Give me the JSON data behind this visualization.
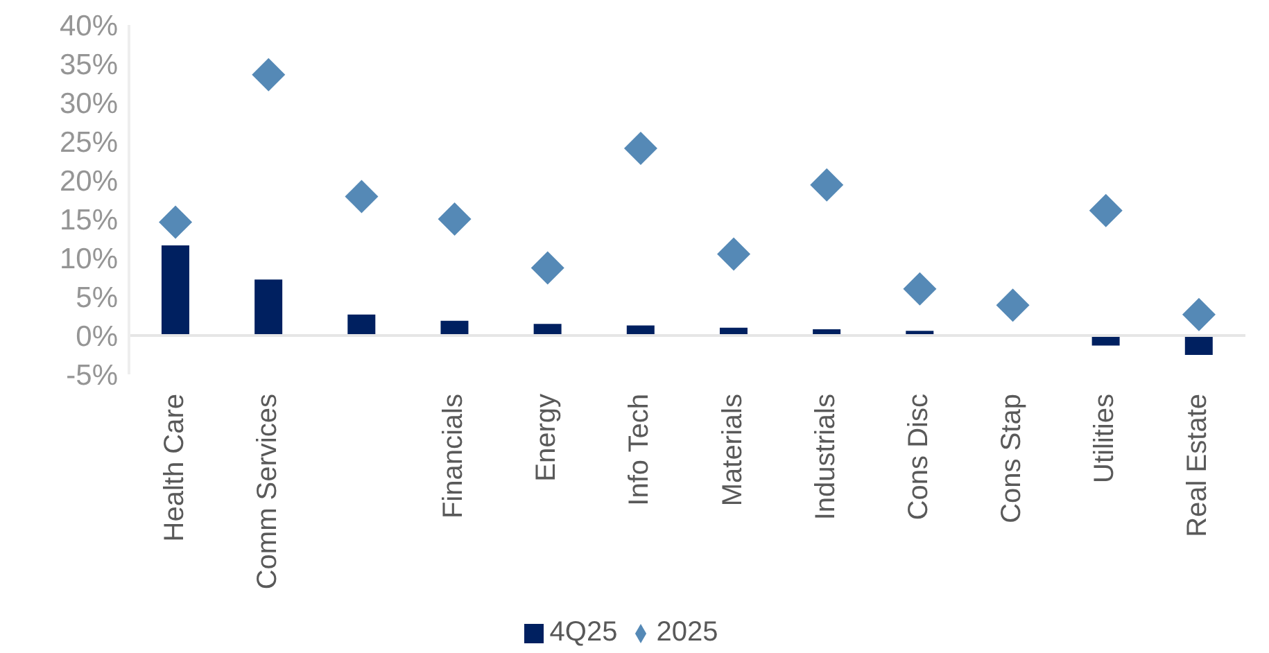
{
  "chart_data": {
    "type": "bar",
    "categories": [
      "Health Care",
      "Comm Services",
      null,
      "Financials",
      "Energy",
      "Info Tech",
      "Materials",
      "Industrials",
      "Cons Disc",
      "Cons Stap",
      "Utilities",
      "Real Estate"
    ],
    "series": [
      {
        "name": "4Q25",
        "color": "#002060",
        "values": [
          11.6,
          7.2,
          2.7,
          1.9,
          1.5,
          1.3,
          1.0,
          0.8,
          0.6,
          0,
          -1.3,
          -2.5
        ]
      },
      {
        "name": "2025",
        "type": "scatter",
        "marker": "diamond",
        "color": "#5589b6",
        "values": [
          14.6,
          33.6,
          17.9,
          15.0,
          8.7,
          24.1,
          10.5,
          19.4,
          6.0,
          3.9,
          16.1,
          2.7
        ]
      }
    ],
    "ylim": [
      -5,
      40
    ],
    "yticks": [
      {
        "value": -5,
        "label": "-5%"
      },
      {
        "value": 0,
        "label": "0%"
      },
      {
        "value": 5,
        "label": "5%"
      },
      {
        "value": 10,
        "label": "10%"
      },
      {
        "value": 15,
        "label": "15%"
      },
      {
        "value": 20,
        "label": "20%"
      },
      {
        "value": 25,
        "label": "25%"
      },
      {
        "value": 30,
        "label": "30%"
      },
      {
        "value": 35,
        "label": "35%"
      },
      {
        "value": 40,
        "label": "40%"
      }
    ],
    "grid": false,
    "legend": "bottom"
  }
}
